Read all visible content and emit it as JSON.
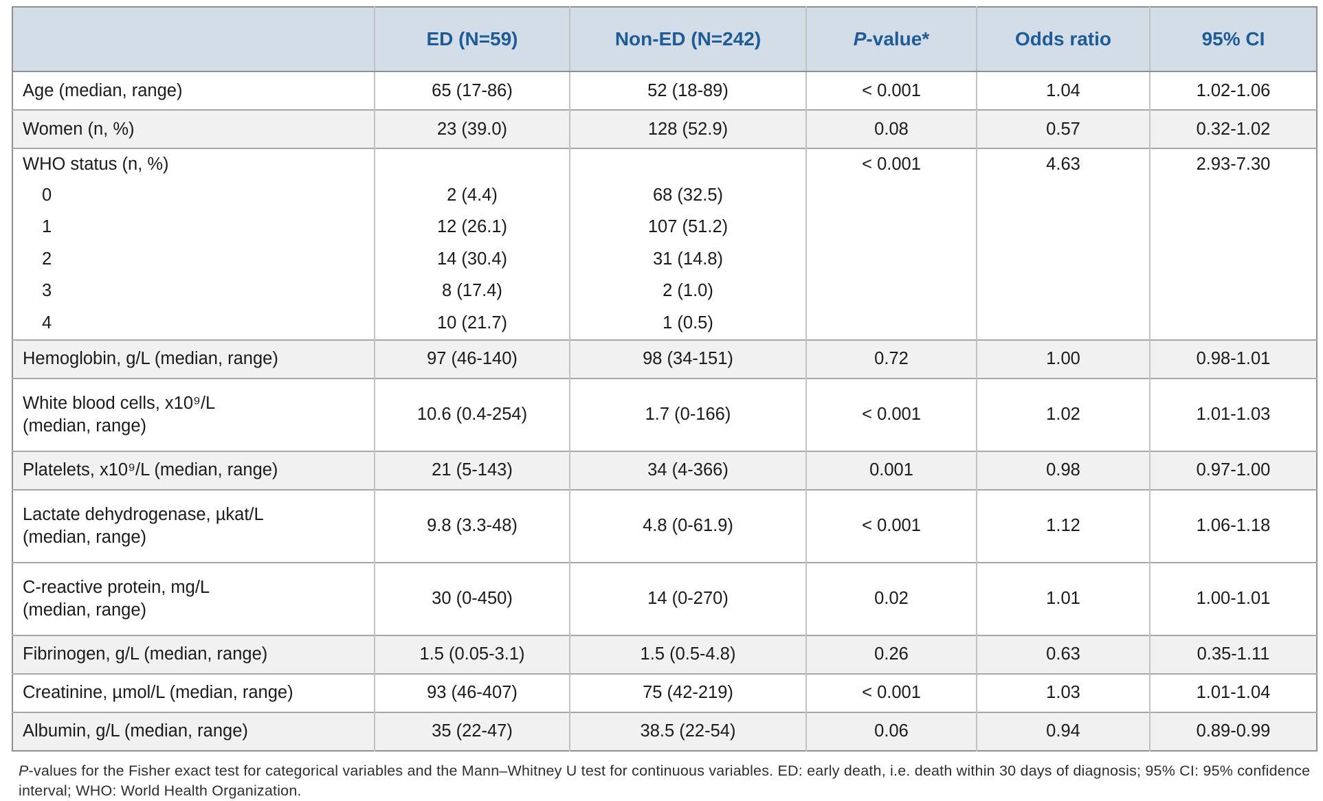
{
  "colors": {
    "header_bg": "#d3dde8",
    "header_text": "#1e5c97",
    "row_shade": "#f1f1f1",
    "row_white": "#ffffff",
    "border_outer": "#8f8f8f",
    "border_horizontal": "#a7a7a7",
    "border_vertical": "#c2c2c2",
    "body_text": "#1b1b1b",
    "footnote_text": "#2e2e2e"
  },
  "table": {
    "columns": [
      {
        "key": "label",
        "header": [
          {
            "t": ""
          }
        ]
      },
      {
        "key": "ed",
        "header": [
          {
            "t": "ED (N=59)"
          }
        ]
      },
      {
        "key": "noned",
        "header": [
          {
            "t": "Non-ED (N=242)"
          }
        ]
      },
      {
        "key": "p",
        "header": [
          {
            "t": "P",
            "italic": true
          },
          {
            "t": "-value*"
          }
        ]
      },
      {
        "key": "or",
        "header": [
          {
            "t": "Odds ratio"
          }
        ]
      },
      {
        "key": "ci",
        "header": [
          {
            "t": "95% CI"
          }
        ]
      }
    ],
    "rows": [
      {
        "label": "Age (median, range)",
        "ed": "65 (17-86)",
        "noned": "52 (18-89)",
        "p": "< 0.001",
        "or": "1.04",
        "ci": "1.02-1.06",
        "shade": false,
        "tall": false
      },
      {
        "label": "Women (n, %)",
        "ed": "23 (39.0)",
        "noned": "128 (52.9)",
        "p": "0.08",
        "or": "0.57",
        "ci": "0.32-1.02",
        "shade": true,
        "tall": false
      },
      {
        "label": "WHO status (n, %)",
        "ed": "",
        "noned": "",
        "p": "< 0.001",
        "or": "4.63",
        "ci": "2.93-7.30",
        "shade": false,
        "sub": [
          {
            "label": "0",
            "ed": "2 (4.4)",
            "noned": "68 (32.5)"
          },
          {
            "label": "1",
            "ed": "12 (26.1)",
            "noned": "107 (51.2)"
          },
          {
            "label": "2",
            "ed": "14 (30.4)",
            "noned": "31 (14.8)"
          },
          {
            "label": "3",
            "ed": "8 (17.4)",
            "noned": "2 (1.0)"
          },
          {
            "label": "4",
            "ed": "10 (21.7)",
            "noned": "1 (0.5)"
          }
        ]
      },
      {
        "label": "Hemoglobin, g/L (median, range)",
        "ed": "97 (46-140)",
        "noned": "98 (34-151)",
        "p": "0.72",
        "or": "1.00",
        "ci": "0.98-1.01",
        "shade": true,
        "tall": false
      },
      {
        "label": "White blood cells, x10⁹/L\n(median, range)",
        "ed": "10.6 (0.4-254)",
        "noned": "1.7 (0-166)",
        "p": "< 0.001",
        "or": "1.02",
        "ci": "1.01-1.03",
        "shade": false,
        "tall": true
      },
      {
        "label": "Platelets, x10⁹/L (median, range)",
        "ed": "21 (5-143)",
        "noned": "34 (4-366)",
        "p": "0.001",
        "or": "0.98",
        "ci": "0.97-1.00",
        "shade": true,
        "tall": false
      },
      {
        "label": "Lactate dehydrogenase, µkat/L\n(median, range)",
        "ed": "9.8 (3.3-48)",
        "noned": "4.8 (0-61.9)",
        "p": "< 0.001",
        "or": "1.12",
        "ci": "1.06-1.18",
        "shade": false,
        "tall": true
      },
      {
        "label": "C-reactive protein, mg/L\n(median, range)",
        "ed": "30 (0-450)",
        "noned": "14 (0-270)",
        "p": "0.02",
        "or": "1.01",
        "ci": "1.00-1.01",
        "shade": false,
        "tall": true
      },
      {
        "label": "Fibrinogen, g/L (median, range)",
        "ed": "1.5 (0.05-3.1)",
        "noned": "1.5 (0.5-4.8)",
        "p": "0.26",
        "or": "0.63",
        "ci": "0.35-1.11",
        "shade": true,
        "tall": false
      },
      {
        "label": "Creatinine, µmol/L (median, range)",
        "ed": "93 (46-407)",
        "noned": "75 (42-219)",
        "p": "< 0.001",
        "or": "1.03",
        "ci": "1.01-1.04",
        "shade": false,
        "tall": false
      },
      {
        "label": "Albumin, g/L (median, range)",
        "ed": "35 (22-47)",
        "noned": "38.5 (22-54)",
        "p": "0.06",
        "or": "0.94",
        "ci": "0.89-0.99",
        "shade": true,
        "tall": false
      }
    ]
  },
  "footnote": {
    "segments": [
      {
        "t": "P",
        "italic": true
      },
      {
        "t": "-values for the Fisher exact test for categorical variables and the Mann–Whitney U test for continuous variables. ED: early death, i.e. death within 30 days of diagnosis; 95% CI: 95% confidence interval; WHO: World Health Organization."
      }
    ]
  }
}
